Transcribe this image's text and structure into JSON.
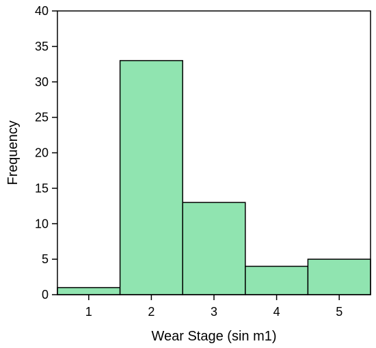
{
  "chart_data": {
    "type": "bar",
    "title": "",
    "xlabel": "Wear Stage (sin m1)",
    "ylabel": "Frequency",
    "categories": [
      "1",
      "2",
      "3",
      "4",
      "5"
    ],
    "values": [
      1,
      33,
      13,
      4,
      5
    ],
    "ylim": [
      0,
      40
    ],
    "yticks": [
      "0",
      "5",
      "10",
      "15",
      "20",
      "25",
      "30",
      "35",
      "40"
    ],
    "grid": false,
    "legend": "none",
    "bar_color": "#90e4b0",
    "bar_edge_color": "#000000"
  }
}
